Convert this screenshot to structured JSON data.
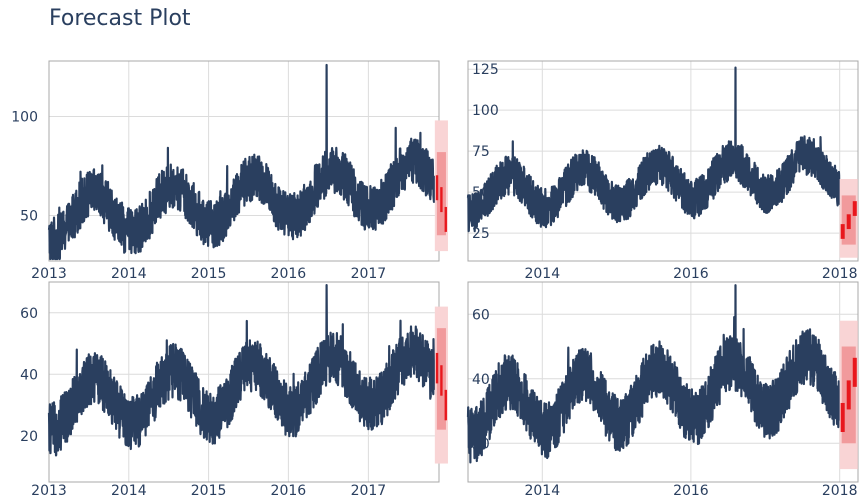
{
  "title": "Forecast Plot",
  "colors": {
    "history": "#2a3f5f",
    "forecast": "#e8171d",
    "interval_inner": "#f19a9c",
    "interval_outer": "#f9d4d5",
    "grid": "#dcdcdc",
    "frame": "#a8a8a8"
  },
  "chart_data": [
    {
      "type": "line",
      "title": "",
      "xlabel": "",
      "ylabel": "",
      "x_range": [
        "2013-01-01",
        "2017-11-20"
      ],
      "ylim": [
        27,
        128
      ],
      "y_ticks": [
        50,
        100
      ],
      "x_ticks": [
        "2013",
        "2014",
        "2015",
        "2016",
        "2017"
      ],
      "grid": true,
      "series": [
        {
          "role": "history",
          "x_start": "2013-01-01",
          "x_end": "2017-10-31",
          "baseline": 48,
          "amplitude": 11,
          "trend_per_year": 4,
          "peak": 126
        },
        {
          "role": "forecast",
          "x_start": "2017-11-01",
          "x_end": "2017-12-31",
          "values": [
            64,
            58,
            48
          ],
          "interval_80": [
            40,
            82
          ],
          "interval_95": [
            32,
            98
          ]
        }
      ]
    },
    {
      "type": "line",
      "title": "",
      "xlabel": "",
      "ylabel": "",
      "x_range": [
        "2013-01-01",
        "2018-04-01"
      ],
      "ylim": [
        8,
        130
      ],
      "y_ticks": [
        25,
        50,
        75,
        100,
        125
      ],
      "x_ticks": [
        "2014",
        "2016",
        "2018"
      ],
      "grid": true,
      "series": [
        {
          "role": "history",
          "x_start": "2013-01-01",
          "x_end": "2017-12-31",
          "baseline": 48,
          "amplitude": 11,
          "trend_per_year": 3,
          "peak": 126
        },
        {
          "role": "forecast",
          "x_start": "2018-01-01",
          "x_end": "2018-03-31",
          "values": [
            26,
            32,
            40
          ],
          "interval_80": [
            18,
            48
          ],
          "interval_95": [
            10,
            58
          ]
        }
      ]
    },
    {
      "type": "line",
      "title": "",
      "xlabel": "",
      "ylabel": "",
      "x_range": [
        "2013-01-01",
        "2017-11-20"
      ],
      "ylim": [
        5,
        70
      ],
      "y_ticks": [
        20,
        40,
        60
      ],
      "x_ticks": [
        "2013",
        "2014",
        "2015",
        "2016",
        "2017"
      ],
      "grid": true,
      "series": [
        {
          "role": "history",
          "x_start": "2013-01-01",
          "x_end": "2017-10-31",
          "baseline": 30,
          "amplitude": 8,
          "trend_per_year": 2,
          "peak": 69
        },
        {
          "role": "forecast",
          "x_start": "2017-11-01",
          "x_end": "2017-12-31",
          "values": [
            42,
            38,
            30
          ],
          "interval_80": [
            22,
            55
          ],
          "interval_95": [
            11,
            62
          ]
        }
      ]
    },
    {
      "type": "line",
      "title": "",
      "xlabel": "",
      "ylabel": "",
      "x_range": [
        "2013-01-01",
        "2018-04-01"
      ],
      "ylim": [
        8,
        70
      ],
      "y_ticks": [
        20,
        40,
        60
      ],
      "x_ticks": [
        "2014",
        "2016",
        "2018"
      ],
      "grid": true,
      "series": [
        {
          "role": "history",
          "x_start": "2013-01-01",
          "x_end": "2017-12-31",
          "baseline": 30,
          "amplitude": 8,
          "trend_per_year": 2,
          "peak": 69
        },
        {
          "role": "forecast",
          "x_start": "2018-01-01",
          "x_end": "2018-03-31",
          "values": [
            28,
            35,
            42
          ],
          "interval_80": [
            20,
            50
          ],
          "interval_95": [
            12,
            58
          ]
        }
      ]
    }
  ]
}
